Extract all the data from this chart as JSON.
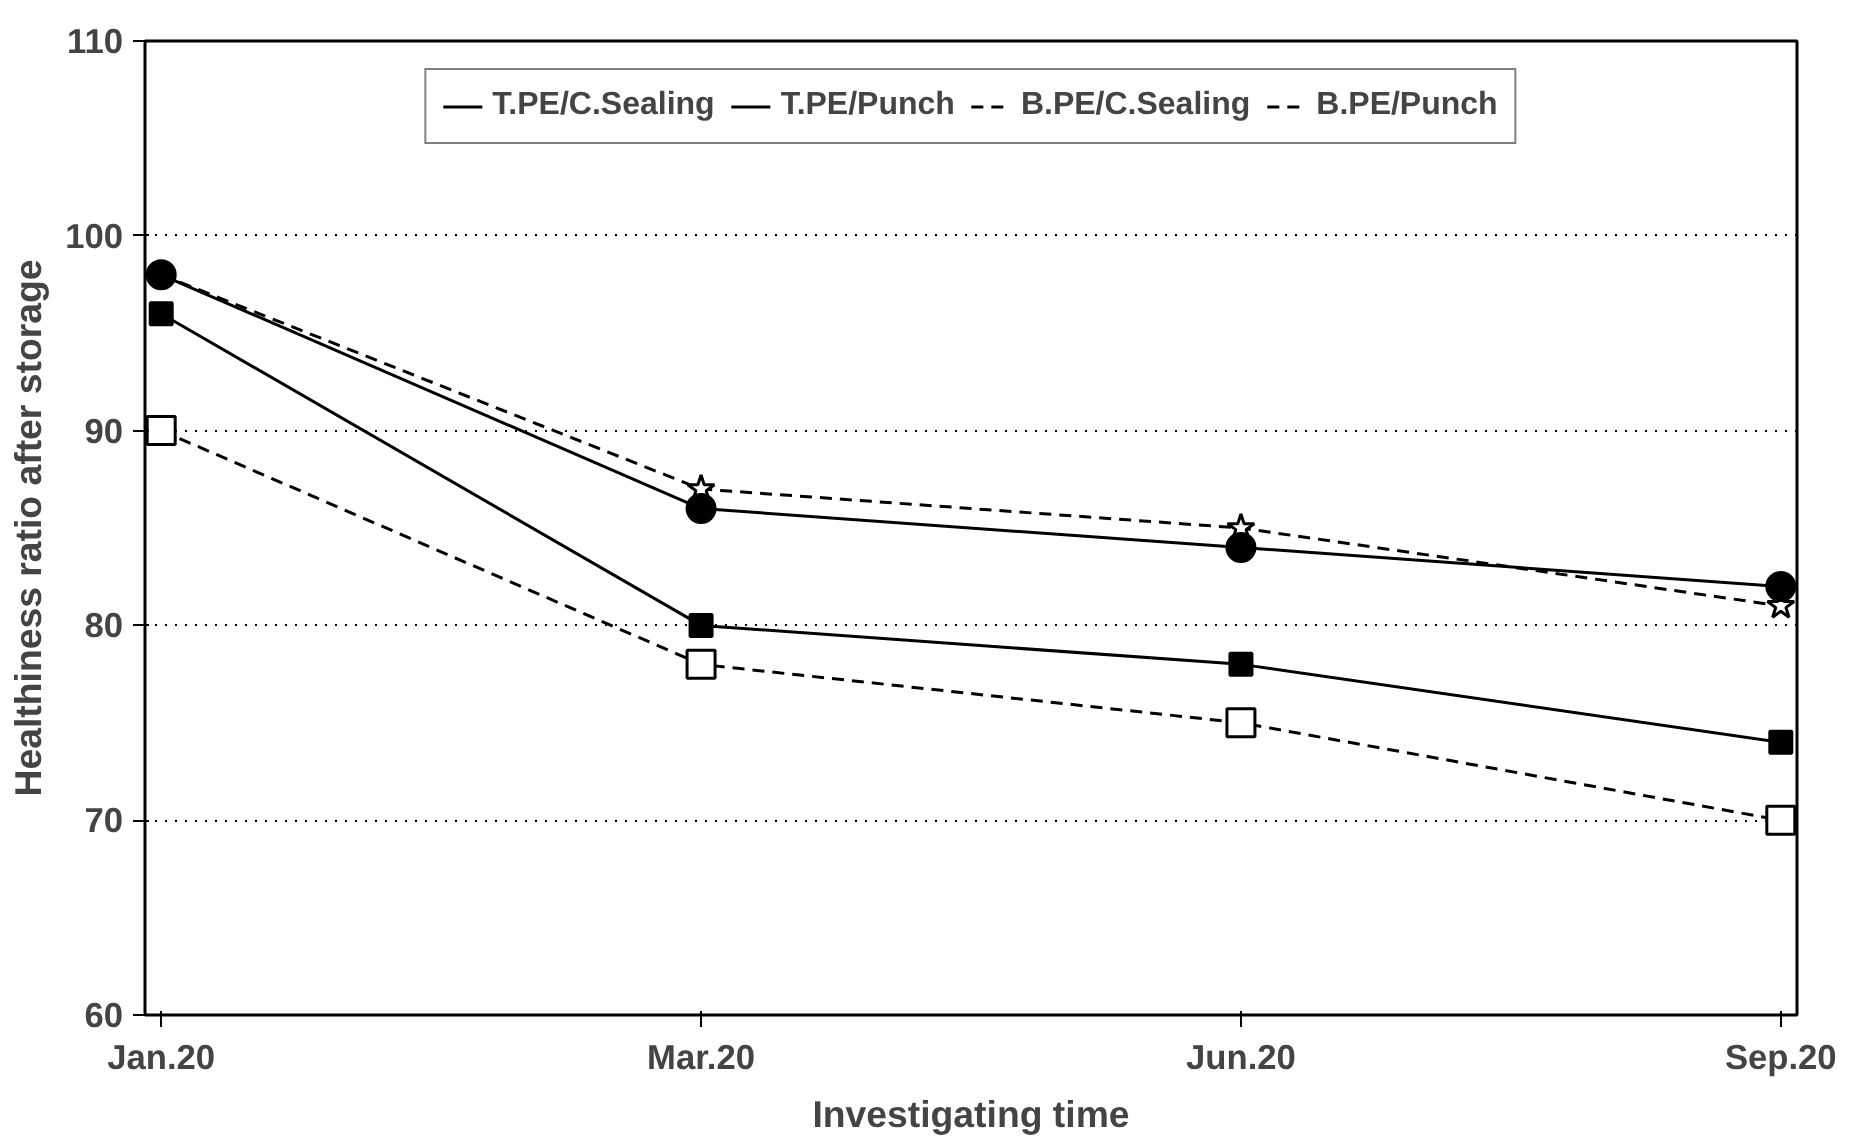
{
  "chart_data": {
    "type": "line",
    "xlabel": "Investigating time",
    "ylabel": "Healthiness ratio after storage",
    "categories": [
      "Jan.20",
      "Mar.20",
      "Jun.20",
      "Sep.20"
    ],
    "series": [
      {
        "name": "T.PE/C.Sealing",
        "color": "#000000",
        "marker": "circle",
        "line_style": "solid",
        "values": [
          98,
          86,
          84,
          82
        ]
      },
      {
        "name": "T.PE/Punch",
        "color": "#000000",
        "marker": "square",
        "line_style": "solid",
        "values": [
          96,
          80,
          78,
          74
        ]
      },
      {
        "name": "B.PE/C.Sealing",
        "color": "#000000",
        "marker": "star",
        "line_style": "dashed",
        "values": [
          98,
          87,
          85,
          81
        ]
      },
      {
        "name": "B.PE/Punch",
        "color": "#000000",
        "marker": "square",
        "line_style": "dashed",
        "values": [
          90,
          78,
          75,
          70
        ]
      }
    ],
    "ylim": [
      60,
      110
    ],
    "yticks": [
      60,
      70,
      80,
      90,
      100,
      110
    ],
    "grid": "y",
    "legend": "top"
  }
}
